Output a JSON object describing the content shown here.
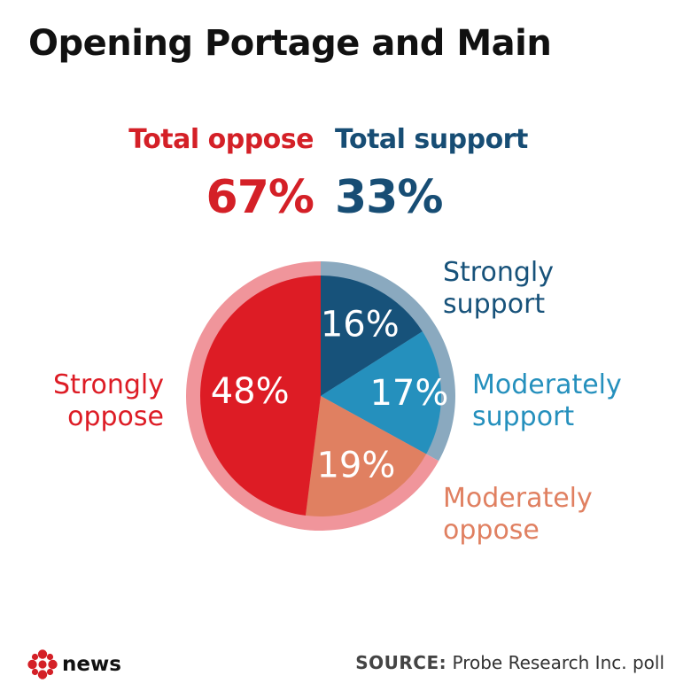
{
  "title": "Opening Portage and Main",
  "totals": {
    "oppose": {
      "label": "Total oppose",
      "value": "67%",
      "color": "#d42027"
    },
    "support": {
      "label": "Total support",
      "value": "33%",
      "color": "#174d74"
    }
  },
  "chart_data": {
    "type": "pie",
    "title": "Opening Portage and Main",
    "slices": [
      {
        "name": "Strongly support",
        "label_lines": [
          "Strongly",
          "support"
        ],
        "value": 16,
        "value_label": "16%",
        "color": "#17527a",
        "label_color": "#17527a"
      },
      {
        "name": "Moderately support",
        "label_lines": [
          "Moderately",
          "support"
        ],
        "value": 17,
        "value_label": "17%",
        "color": "#2590bd",
        "label_color": "#2590bd"
      },
      {
        "name": "Moderately oppose",
        "label_lines": [
          "Moderately",
          "oppose"
        ],
        "value": 19,
        "value_label": "19%",
        "color": "#e08061",
        "label_color": "#e08061"
      },
      {
        "name": "Strongly oppose",
        "label_lines": [
          "Strongly",
          "oppose"
        ],
        "value": 48,
        "value_label": "48%",
        "color": "#dd1c25",
        "label_color": "#dd1c25"
      }
    ],
    "outer_ring": [
      {
        "name": "Total support",
        "value": 33,
        "color": "#8aa9bf"
      },
      {
        "name": "Total oppose",
        "value": 67,
        "color": "#f0959b"
      }
    ]
  },
  "footer": {
    "brand": "news",
    "brand_icon": "cbc-gem-icon",
    "source_prefix": "SOURCE:",
    "source_text": "Probe Research Inc. poll"
  }
}
